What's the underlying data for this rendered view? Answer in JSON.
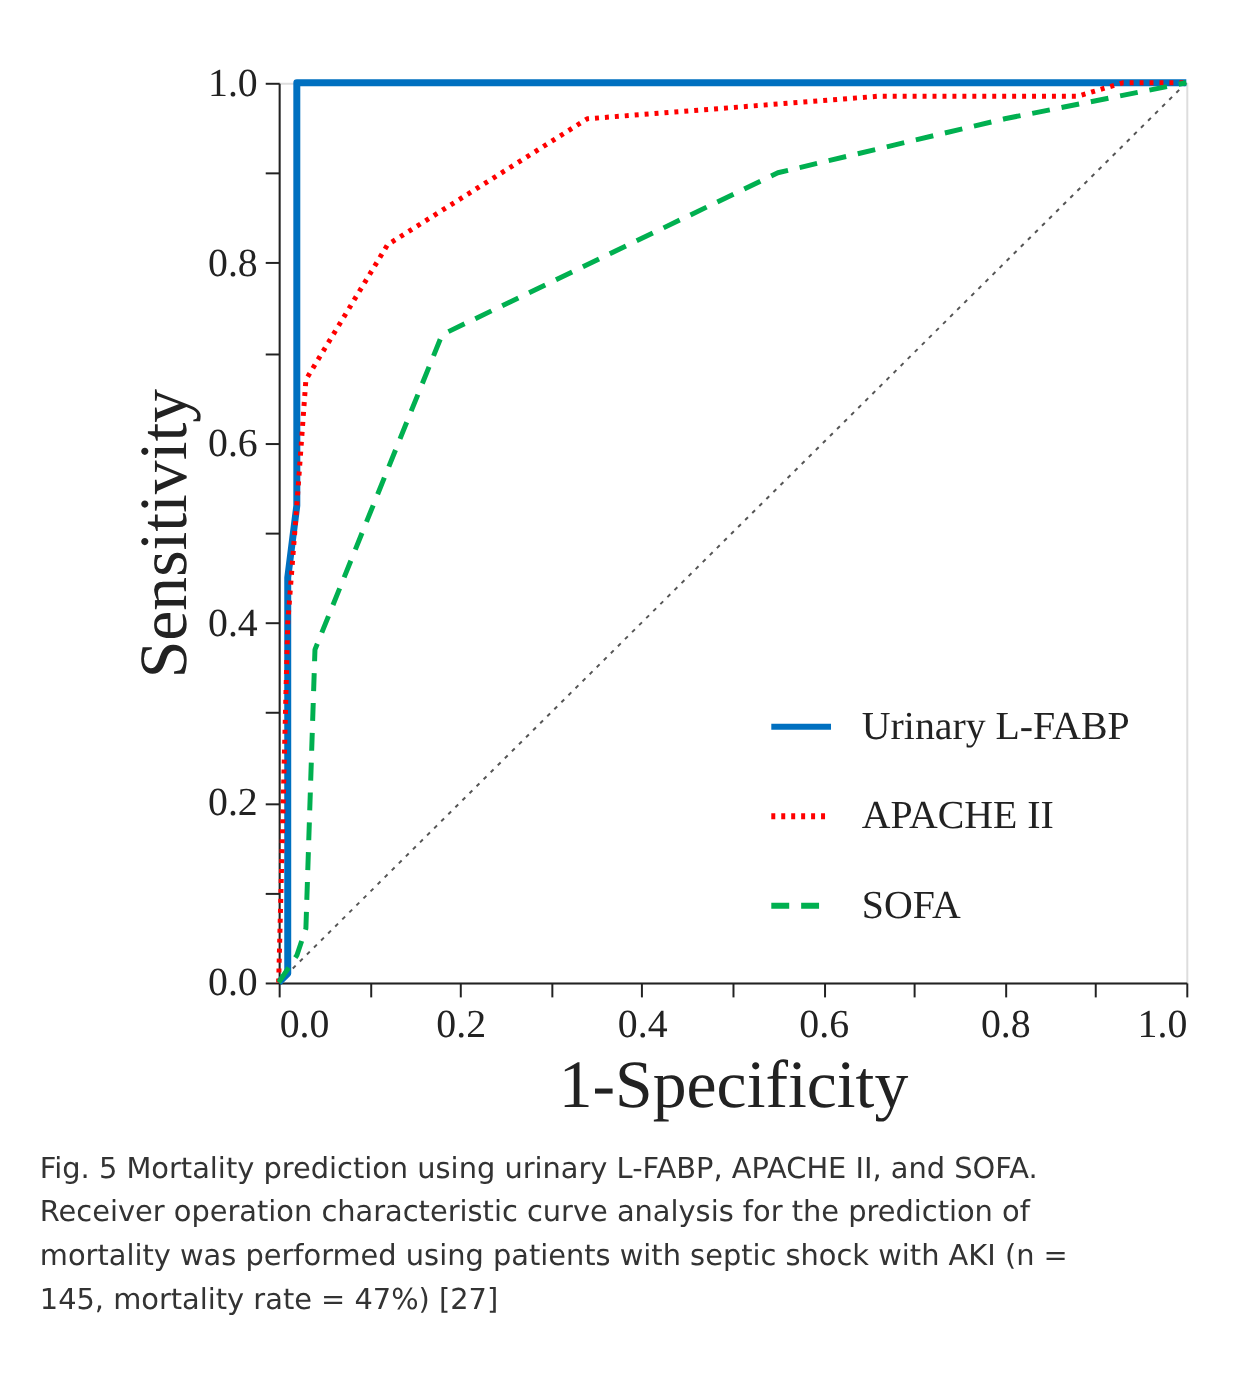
{
  "chart_data": {
    "type": "line",
    "xlabel": "1-Specificity",
    "ylabel": "Sensitivity",
    "xlim": [
      0,
      1
    ],
    "ylim": [
      0,
      1
    ],
    "xticks": [
      {
        "value": 0,
        "label": "0.0"
      },
      {
        "value": 0.1,
        "label": null
      },
      0.2,
      {
        "value": 0.3,
        "label": null
      },
      0.4,
      {
        "value": 0.5,
        "label": null
      },
      0.6,
      {
        "value": 0.7,
        "label": null
      },
      0.8,
      {
        "value": 0.9,
        "label": null
      },
      {
        "value": 1,
        "label": "1.0"
      }
    ],
    "yticks": [
      {
        "value": 0,
        "label": "0.0"
      },
      {
        "value": 0.1,
        "label": null
      },
      0.2,
      {
        "value": 0.3,
        "label": null
      },
      0.4,
      {
        "value": 0.5,
        "label": null
      },
      0.6,
      {
        "value": 0.7,
        "label": null
      },
      0.8,
      {
        "value": 0.9,
        "label": null
      },
      {
        "value": 1,
        "label": "1.0"
      }
    ],
    "grid": false,
    "legend": "bottom right",
    "marker": "none",
    "series": [
      {
        "name": "Urinary L-FABP",
        "color": "#0070c0",
        "line_style": "solid",
        "x": [
          0,
          0.01,
          0.01,
          0.02,
          0.02,
          1
        ],
        "values": [
          0,
          0.01,
          0.45,
          0.53,
          1.0,
          1.0
        ]
      },
      {
        "name": "APACHE II",
        "color": "#ff0000",
        "line_style": "dotted",
        "x": [
          0,
          0.01,
          0.02,
          0.03,
          0.12,
          0.34,
          0.66,
          0.88,
          0.93,
          1
        ],
        "values": [
          0,
          0.4,
          0.53,
          0.67,
          0.82,
          0.96,
          0.985,
          0.985,
          1.0,
          1.0
        ]
      },
      {
        "name": "SOFA",
        "color": "#00b050",
        "line_style": "dashed",
        "x": [
          0,
          0.02,
          0.03,
          0.04,
          0.18,
          0.55,
          0.8,
          0.95,
          1
        ],
        "values": [
          0,
          0.03,
          0.06,
          0.37,
          0.72,
          0.9,
          0.96,
          0.99,
          1.0
        ]
      },
      {
        "color": "#555555",
        "line_style": "dotted",
        "x": [
          0,
          1
        ],
        "values": [
          0,
          1
        ]
      }
    ],
    "annotations": [
      "Fig. 5 Mortality prediction using urinary L-FABP, APACHE II, and SOFA. Receiver operation characteristic curve analysis for the prediction of mortality was performed using patients with septic shock with AKI (n = 145, mortality rate = 47%) [27]"
    ]
  }
}
